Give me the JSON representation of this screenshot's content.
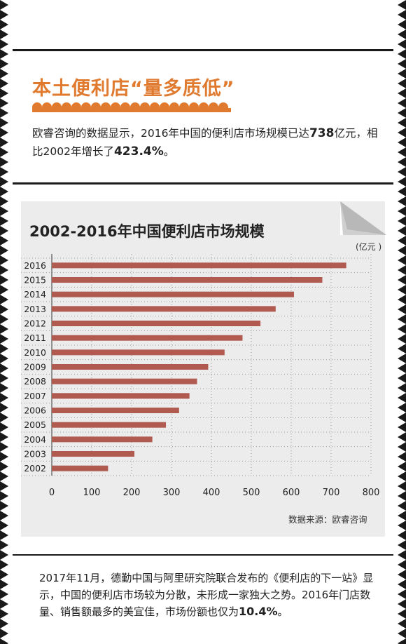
{
  "header": {
    "title": "本土便利店“量多质低”"
  },
  "intro": {
    "text_a": "欧睿咨询的数据显示，2016年中国的便利店市场规模已达",
    "num_a": "738",
    "text_b": "亿元，相比2002年增长了",
    "num_b": "423.4%",
    "text_c": "。"
  },
  "chart_data": {
    "type": "bar",
    "orientation": "horizontal",
    "title": "2002-2016年中国便利店市场规模",
    "unit": "(亿元 )",
    "source": "数据来源：欧睿咨询",
    "categories": [
      "2016",
      "2015",
      "2014",
      "2013",
      "2012",
      "2011",
      "2010",
      "2009",
      "2008",
      "2007",
      "2006",
      "2005",
      "2004",
      "2003",
      "2002"
    ],
    "values": [
      738,
      678,
      607,
      561,
      523,
      478,
      433,
      392,
      364,
      345,
      319,
      286,
      252,
      207,
      141
    ],
    "xlim": [
      0,
      800
    ],
    "xticks": [
      "0",
      "100",
      "200",
      "300",
      "400",
      "500",
      "600",
      "700",
      "800"
    ],
    "grid": true,
    "bar_color": "#b05a50"
  },
  "bottom": {
    "text_a": "2017年11月，德勤中国与阿里研究院联合发布的《便利店的下一站》显示，中国的便利店市场较为分散，未形成一家独大之势。2016年门店数量、销售额最多的美宜佳，市场份额也仅为",
    "num": "10.4%",
    "text_b": "。"
  }
}
